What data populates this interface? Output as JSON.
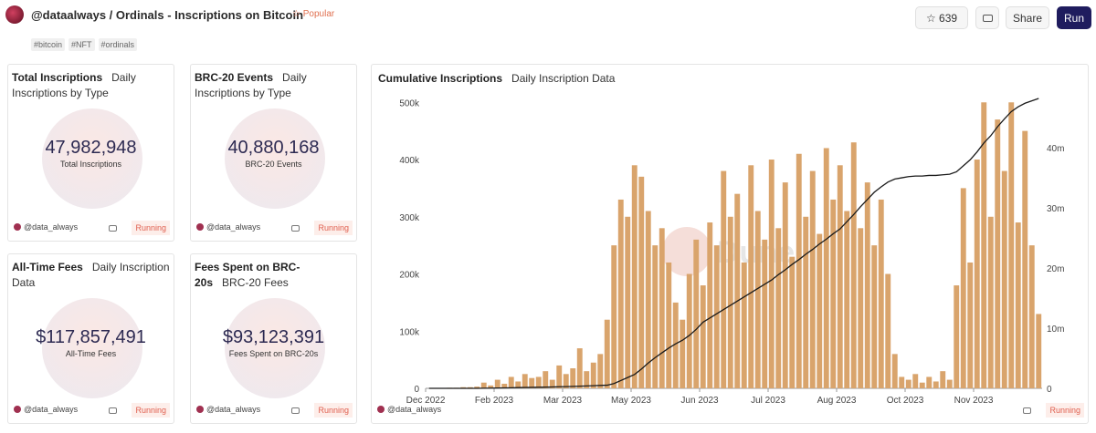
{
  "header": {
    "title": "@dataalways / Ordinals - Inscriptions on Bitcoin",
    "badge": "Popular",
    "tags": [
      "#bitcoin",
      "#NFT",
      "#ordinals"
    ],
    "stars": 639,
    "share": "Share",
    "run": "Run"
  },
  "counters": [
    {
      "title": "Total Inscriptions",
      "subtitle": "Daily Inscriptions by Type",
      "value": "47,982,948",
      "label": "Total Inscriptions",
      "author": "@data_always",
      "status": "Running"
    },
    {
      "title": "BRC-20 Events",
      "subtitle": "Daily Inscriptions by Type",
      "value": "40,880,168",
      "label": "BRC-20 Events",
      "author": "@data_always",
      "status": "Running"
    },
    {
      "title": "All-Time Fees",
      "subtitle": "Daily Inscription Data",
      "value": "$117,857,491",
      "label": "All-Time Fees",
      "author": "@data_always",
      "status": "Running"
    },
    {
      "title": "Fees Spent on BRC-20s",
      "subtitle": "BRC-20 Fees",
      "value": "$93,123,391",
      "label": "Fees Spent on BRC-20s",
      "author": "@data_always",
      "status": "Running"
    }
  ],
  "chart_card": {
    "title": "Cumulative Inscriptions",
    "subtitle": "Daily Inscription Data",
    "author": "@data_always",
    "status": "Running"
  },
  "chart_data": {
    "type": "bar",
    "watermark": "Dune",
    "categories": [
      "Dec 2022",
      null,
      null,
      null,
      null,
      null,
      null,
      null,
      null,
      null,
      "Feb 2023",
      null,
      null,
      null,
      null,
      null,
      null,
      null,
      null,
      null,
      "Mar 2023",
      null,
      null,
      null,
      null,
      null,
      null,
      null,
      null,
      null,
      "May 2023",
      null,
      null,
      null,
      null,
      null,
      null,
      null,
      null,
      null,
      "Jun 2023",
      null,
      null,
      null,
      null,
      null,
      null,
      null,
      null,
      null,
      "Jul 2023",
      null,
      null,
      null,
      null,
      null,
      null,
      null,
      null,
      null,
      "Aug 2023",
      null,
      null,
      null,
      null,
      null,
      null,
      null,
      null,
      null,
      "Oct 2023",
      null,
      null,
      null,
      null,
      null,
      null,
      null,
      null,
      null,
      "Nov 2023",
      null,
      null,
      null,
      null,
      null,
      null,
      null,
      null,
      null
    ],
    "series": [
      {
        "color": "#d9a46c",
        "values": [
          0,
          0,
          0,
          1000,
          1000,
          2000,
          2000,
          3000,
          10000,
          5000,
          15000,
          8000,
          20000,
          12000,
          25000,
          18000,
          20000,
          30000,
          15000,
          40000,
          25000,
          35000,
          70000,
          30000,
          45000,
          60000,
          120000,
          250000,
          330000,
          300000,
          390000,
          370000,
          310000,
          250000,
          280000,
          220000,
          150000,
          120000,
          200000,
          260000,
          180000,
          290000,
          250000,
          380000,
          300000,
          340000,
          220000,
          390000,
          310000,
          260000,
          400000,
          280000,
          360000,
          230000,
          410000,
          300000,
          380000,
          270000,
          420000,
          330000,
          390000,
          310000,
          430000,
          280000,
          360000,
          250000,
          330000,
          200000,
          60000,
          20000,
          15000,
          25000,
          10000,
          20000,
          12000,
          30000,
          15000,
          180000,
          350000,
          220000,
          400000,
          500000,
          300000,
          470000,
          380000,
          500000,
          290000,
          450000,
          250000,
          130000
        ]
      },
      {
        "type": "line",
        "axis": "y2",
        "color": "#1a1a1a",
        "values": [
          0,
          0,
          0,
          0,
          0,
          0,
          0,
          0,
          20000,
          40000,
          60000,
          80000,
          100000,
          120000,
          140000,
          160000,
          180000,
          200000,
          230000,
          260000,
          290000,
          320000,
          360000,
          400000,
          440000,
          480000,
          520000,
          800000,
          1300000,
          1800000,
          2300000,
          3200000,
          4200000,
          5100000,
          5900000,
          6700000,
          7400000,
          8000000,
          8800000,
          9800000,
          11000000,
          11700000,
          12400000,
          13100000,
          13800000,
          14500000,
          15200000,
          15900000,
          16600000,
          17300000,
          18000000,
          18900000,
          19700000,
          20600000,
          21400000,
          22300000,
          23100000,
          24000000,
          24800000,
          25700000,
          26500000,
          27700000,
          28900000,
          30200000,
          31400000,
          32600000,
          33500000,
          34300000,
          34800000,
          35000000,
          35200000,
          35300000,
          35300000,
          35400000,
          35400000,
          35500000,
          35600000,
          36000000,
          37000000,
          38000000,
          39300000,
          40800000,
          42000000,
          43500000,
          44800000,
          46000000,
          46800000,
          47400000,
          47800000,
          48200000
        ]
      }
    ],
    "ylim": [
      0,
      510000
    ],
    "yticks": [
      0,
      {
        "value": 100000,
        "label": "100k"
      },
      {
        "value": 200000,
        "label": "200k"
      },
      {
        "value": 300000,
        "label": "300k"
      },
      {
        "value": 400000,
        "label": "400k"
      },
      {
        "value": 500000,
        "label": "500k"
      }
    ],
    "y2lim": [
      0,
      48500000
    ],
    "y2ticks": [
      0,
      {
        "value": 10000000,
        "label": "10m"
      },
      {
        "value": 20000000,
        "label": "20m"
      },
      {
        "value": 30000000,
        "label": "30m"
      },
      {
        "value": 40000000,
        "label": "40m"
      }
    ],
    "grid": false
  }
}
